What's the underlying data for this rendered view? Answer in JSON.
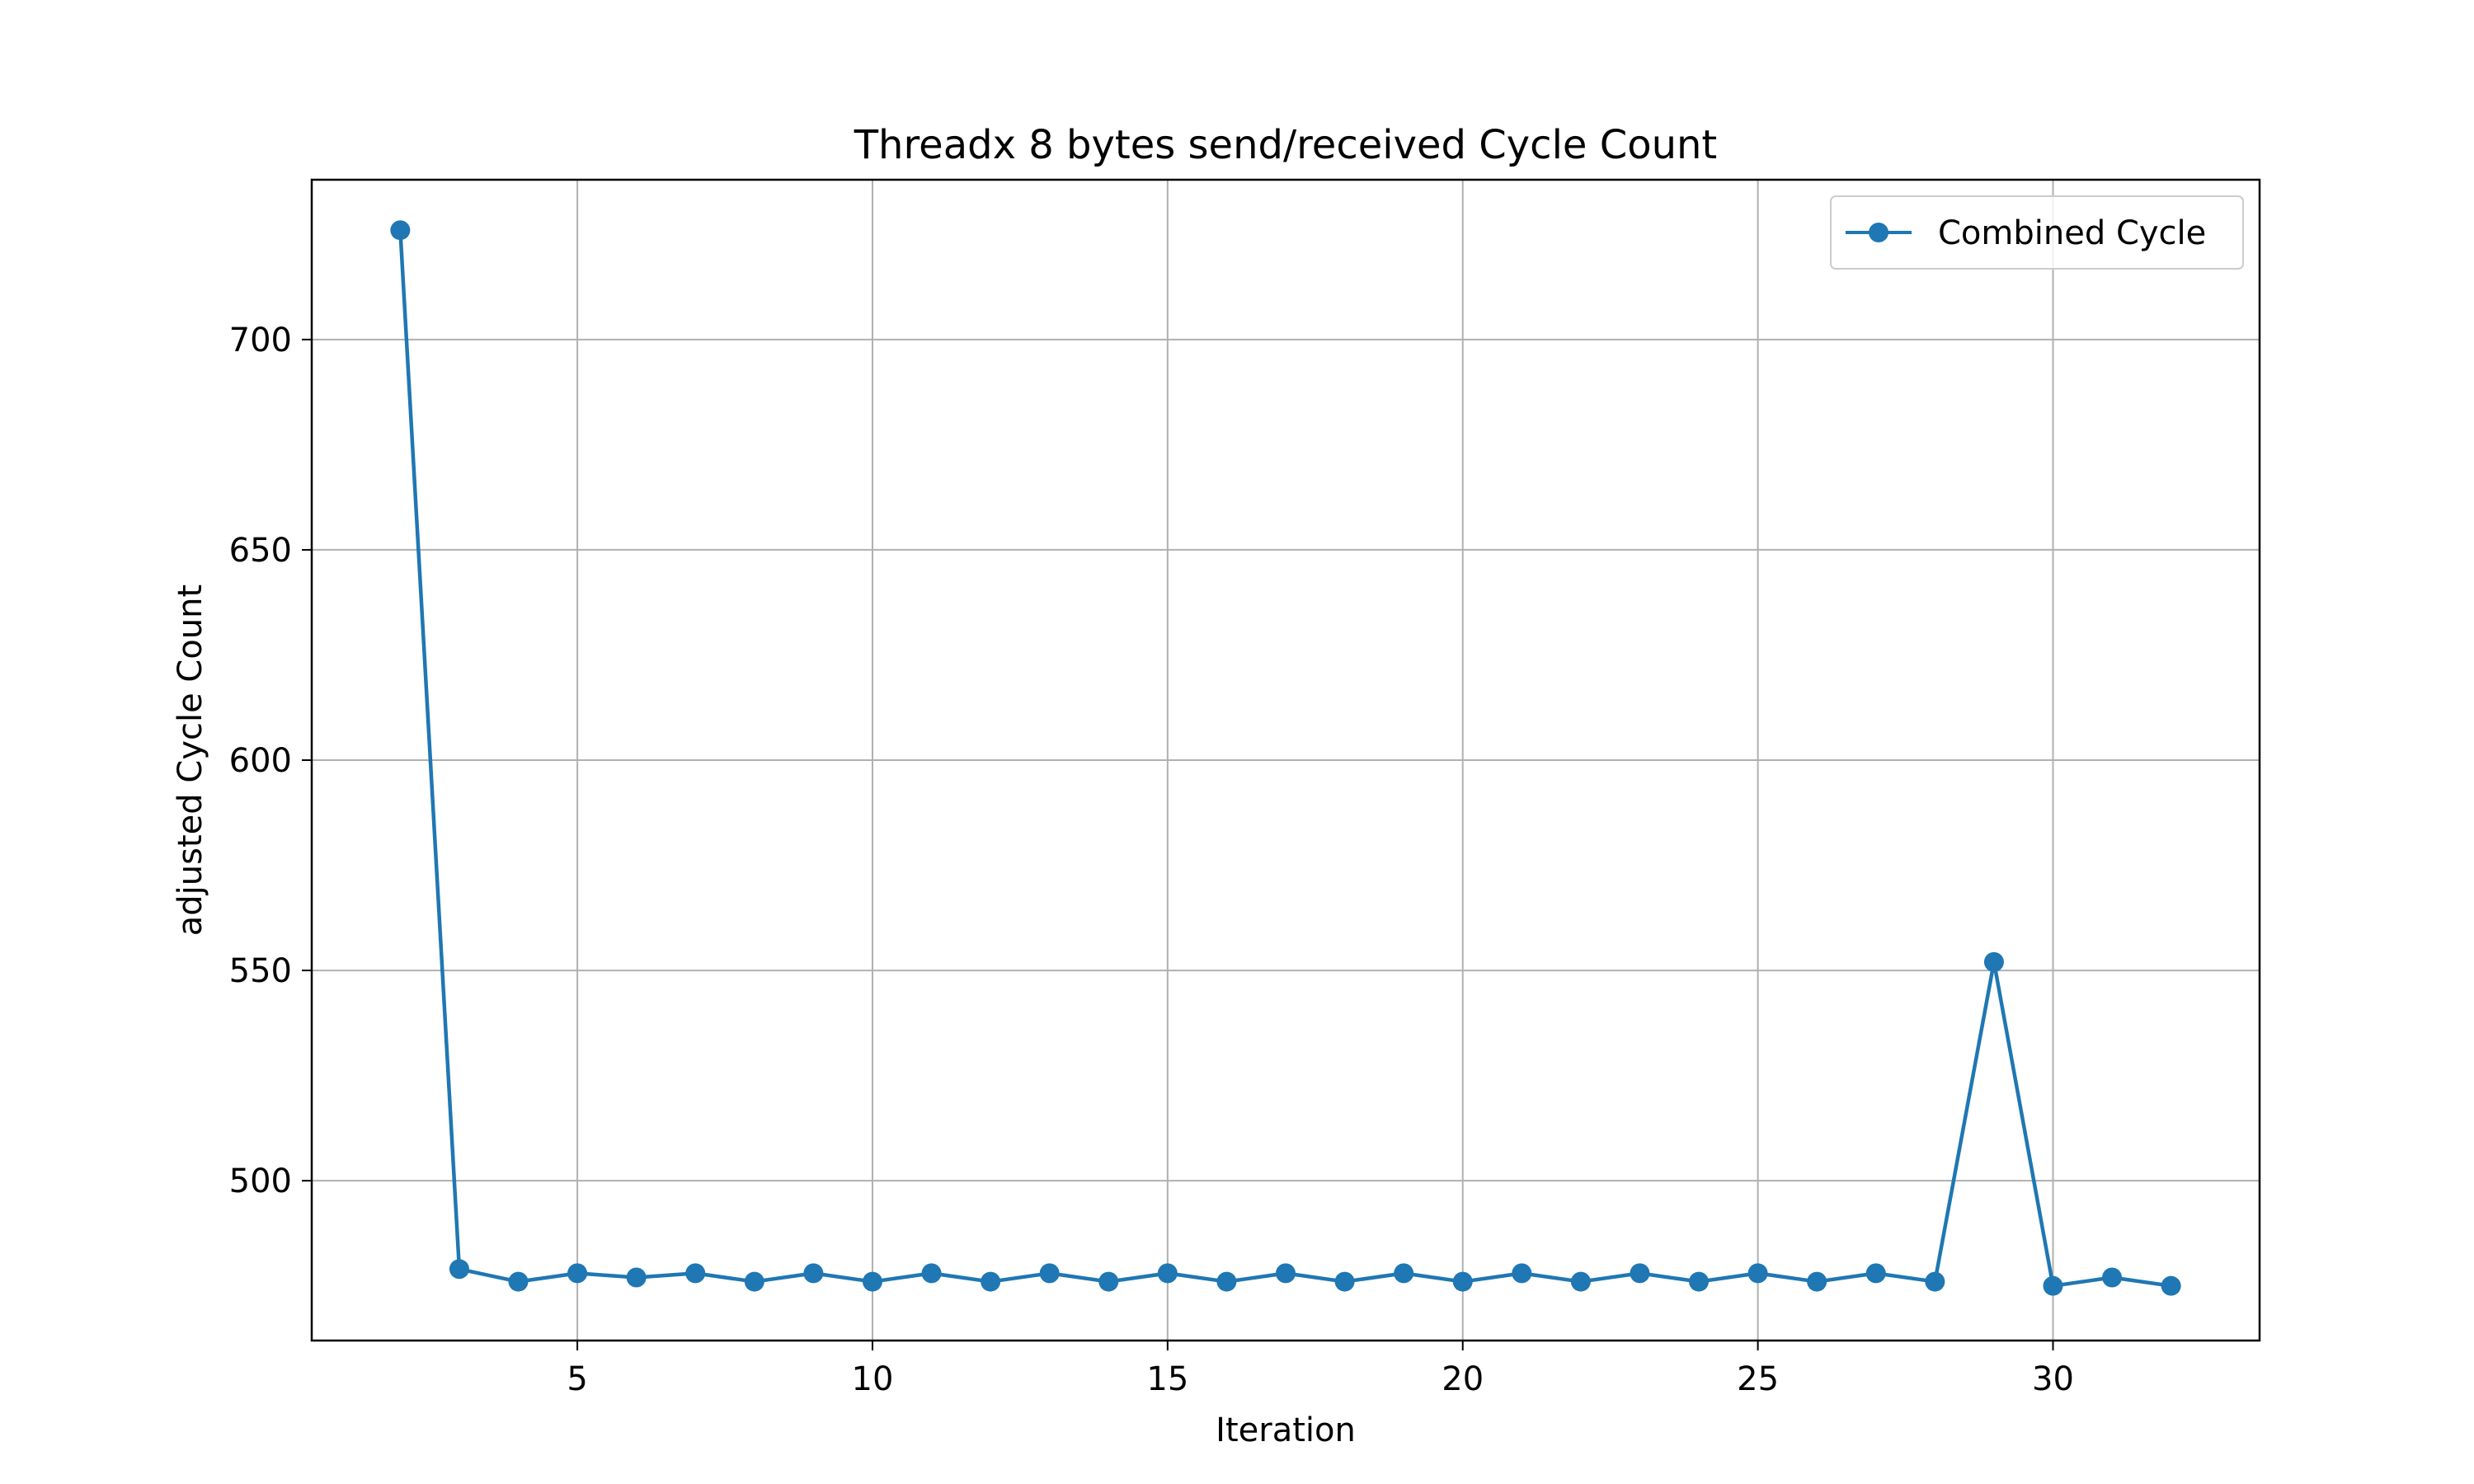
{
  "chart_data": {
    "type": "line",
    "title": "Threadx 8 bytes send/received Cycle Count",
    "xlabel": "Iteration",
    "ylabel": "adjusted Cycle Count",
    "xlim": [
      0.5,
      33.5
    ],
    "ylim": [
      462,
      738
    ],
    "xticks": [
      5,
      10,
      15,
      20,
      25,
      30
    ],
    "yticks": [
      500,
      550,
      600,
      650,
      700
    ],
    "grid": true,
    "legend_position": "top-right",
    "series": [
      {
        "name": "Combined Cycle",
        "color": "#1f77b4",
        "marker": "circle",
        "x": [
          2,
          3,
          4,
          5,
          6,
          7,
          8,
          9,
          10,
          11,
          12,
          13,
          14,
          15,
          16,
          17,
          18,
          19,
          20,
          21,
          22,
          23,
          24,
          25,
          26,
          27,
          28,
          29,
          30,
          31,
          32
        ],
        "y": [
          726,
          479,
          476,
          478,
          477,
          478,
          476,
          478,
          476,
          478,
          476,
          478,
          476,
          478,
          476,
          478,
          476,
          478,
          476,
          478,
          476,
          478,
          476,
          478,
          476,
          478,
          476,
          552,
          475,
          477,
          475
        ]
      }
    ]
  }
}
